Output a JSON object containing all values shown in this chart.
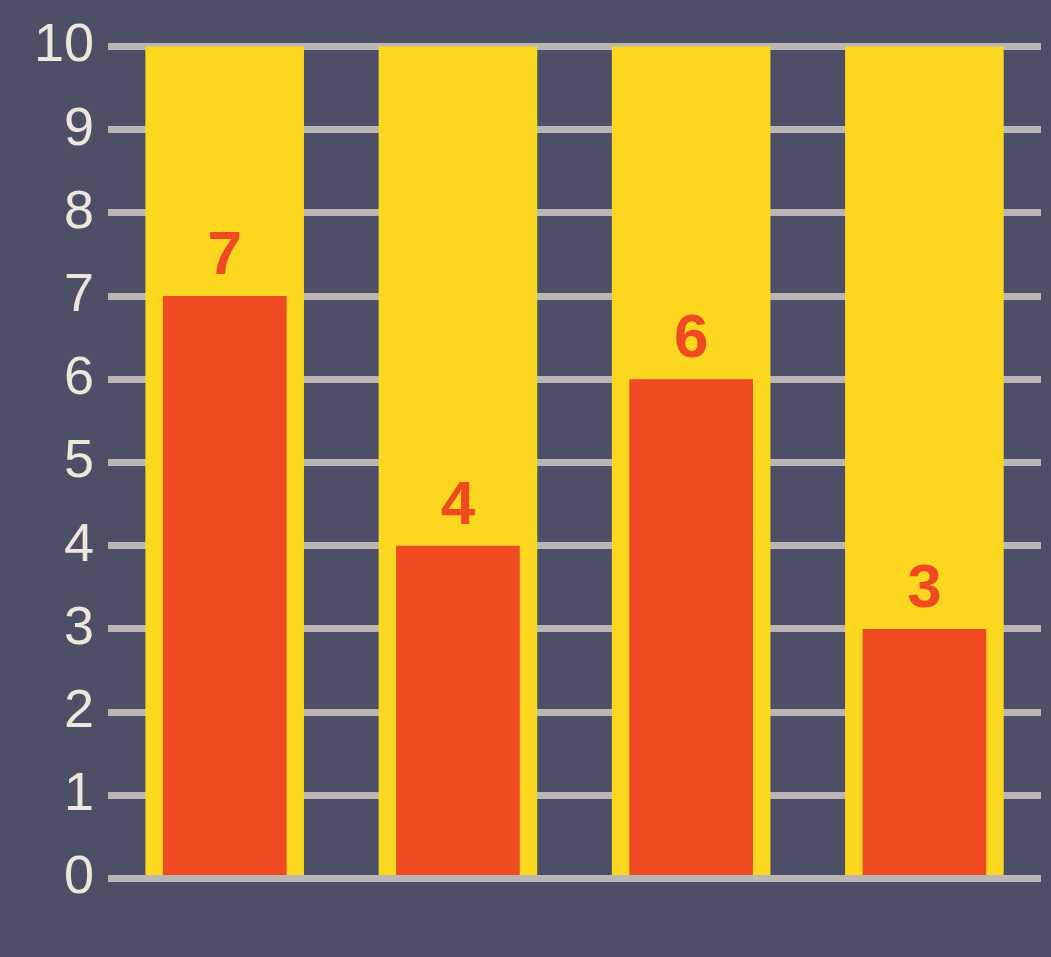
{
  "chart_data": {
    "type": "bar",
    "categories": [
      null,
      null,
      null,
      null
    ],
    "series": [
      {
        "color": "#fbd71f",
        "values": [
          10,
          10,
          10,
          10
        ]
      },
      {
        "color": "#f04a23",
        "values": [
          7,
          4,
          6,
          3
        ],
        "value_labels": [
          "7",
          "4",
          "6",
          "3"
        ]
      }
    ],
    "ylim": [
      0,
      10
    ],
    "yticks": [
      0,
      1,
      2,
      3,
      4,
      5,
      6,
      7,
      8,
      9,
      10
    ],
    "grid": "y",
    "legend": false
  }
}
